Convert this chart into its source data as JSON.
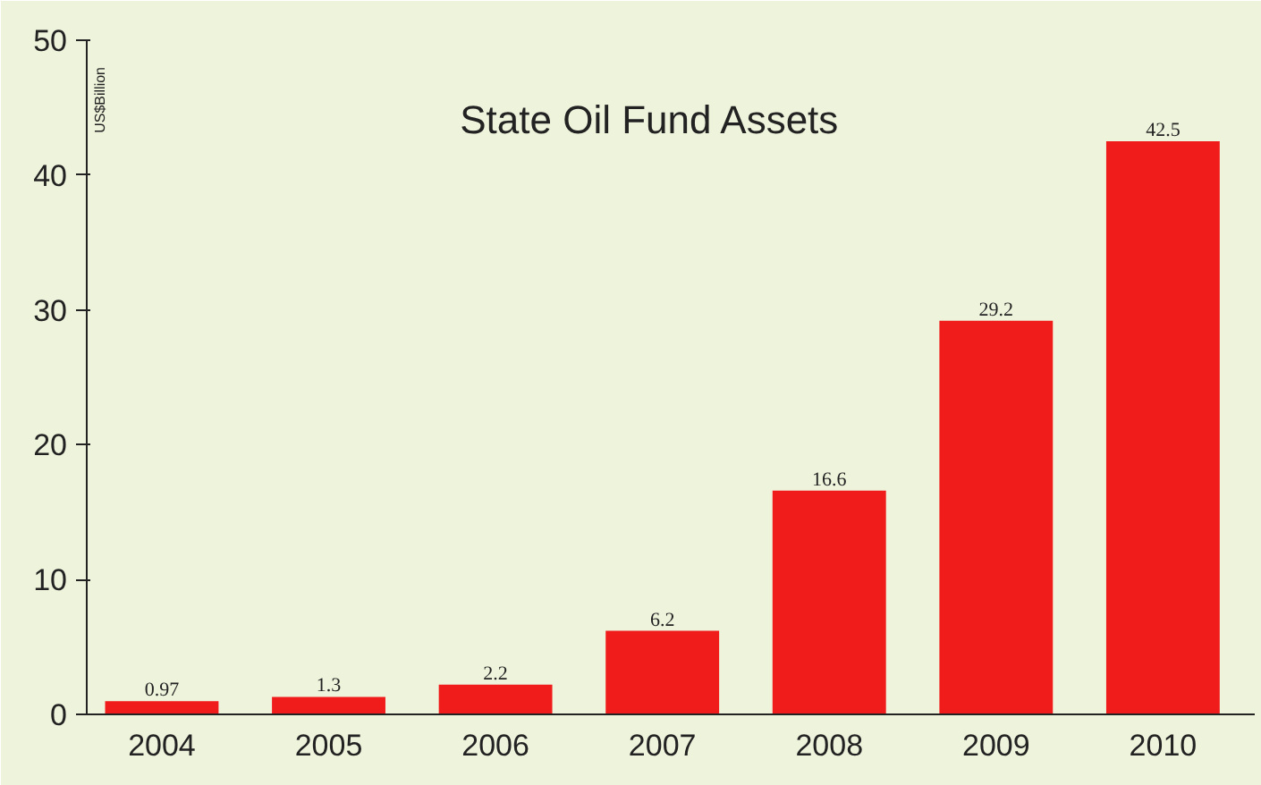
{
  "chart_data": {
    "type": "bar",
    "title": "State Oil Fund Assets",
    "ylabel": "US$Billion",
    "categories": [
      "2004",
      "2005",
      "2006",
      "2007",
      "2008",
      "2009",
      "2010"
    ],
    "values": [
      0.97,
      1.3,
      2.2,
      6.2,
      16.6,
      29.2,
      42.5
    ],
    "color": "#f01c1c",
    "ylim": [
      0,
      50
    ],
    "yticks": [
      0,
      10,
      20,
      30,
      40,
      50
    ],
    "grid": false,
    "data_labels": true
  }
}
